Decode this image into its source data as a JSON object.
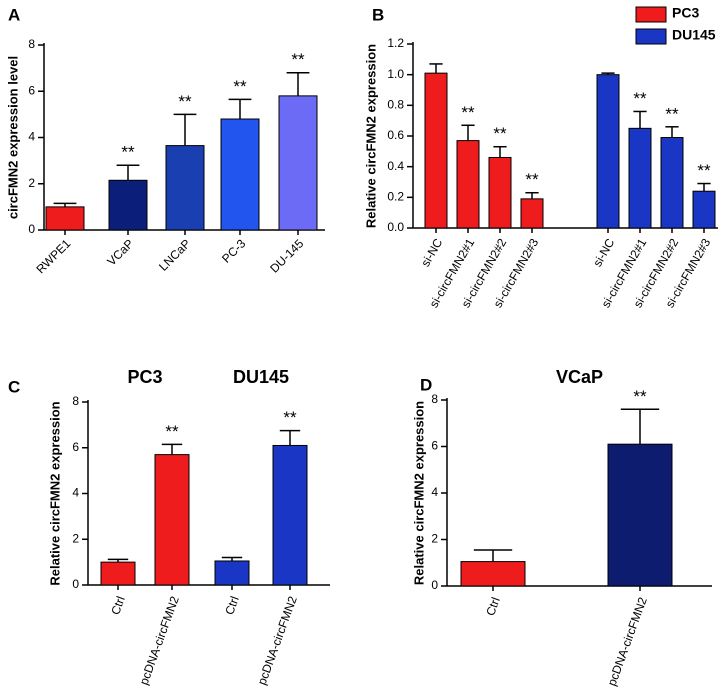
{
  "chart_data": [
    {
      "type": "bar",
      "panel": "A",
      "ylabel": "circFMN2 expression level",
      "categories": [
        "RWPE1",
        "VCaP",
        "LNCaP",
        "PC-3",
        "DU-145"
      ],
      "values": [
        1.0,
        2.15,
        3.65,
        4.8,
        5.8
      ],
      "errors": [
        0.15,
        0.65,
        1.35,
        0.85,
        1.0
      ],
      "colors": [
        "#ee1c1c",
        "#0b1e7a",
        "#1a3fb0",
        "#2255ee",
        "#6b6bf5"
      ],
      "annotations": [
        null,
        "**",
        "**",
        "**",
        "**"
      ],
      "ylim": [
        0,
        8
      ],
      "yticks": [
        0,
        2,
        4,
        6,
        8
      ]
    },
    {
      "type": "bar",
      "panel": "B",
      "ylabel": "Relative circFMN2 expression",
      "categories": [
        "si-NC",
        "si-circFMN2#1",
        "si-circFMN2#2",
        "si-circFMN2#3"
      ],
      "series": [
        {
          "name": "PC3",
          "color": "#ee1c1c",
          "values": [
            1.01,
            0.57,
            0.46,
            0.19
          ],
          "errors": [
            0.06,
            0.1,
            0.07,
            0.04
          ],
          "annotations": [
            null,
            "**",
            "**",
            "**"
          ]
        },
        {
          "name": "DU145",
          "color": "#1a36c4",
          "values": [
            1.0,
            0.65,
            0.59,
            0.24
          ],
          "errors": [
            0.01,
            0.11,
            0.07,
            0.05
          ],
          "annotations": [
            null,
            "**",
            "**",
            "**"
          ]
        }
      ],
      "legend": "upper right",
      "ylim": [
        0,
        1.2
      ],
      "yticks": [
        {
          "value": 0,
          "label": "0.0"
        },
        0.2,
        0.4,
        0.6,
        0.8,
        {
          "value": 1,
          "label": "1.0"
        },
        1.2
      ]
    },
    {
      "type": "bar",
      "panel": "C",
      "ylabel": "Relative circFMN2 expression",
      "categories": [
        "Ctrl",
        "pcDNA-circFMN2"
      ],
      "series": [
        {
          "name": "PC3",
          "color": "#ee1c1c",
          "values": [
            1.0,
            5.7
          ],
          "errors": [
            0.12,
            0.45
          ],
          "annotations": [
            null,
            "**"
          ]
        },
        {
          "name": "DU145",
          "color": "#1a36c4",
          "values": [
            1.05,
            6.1
          ],
          "errors": [
            0.15,
            0.65
          ],
          "annotations": [
            null,
            "**"
          ]
        }
      ],
      "ylim": [
        0,
        8
      ],
      "yticks": [
        0,
        2,
        4,
        6,
        8
      ]
    },
    {
      "type": "bar",
      "panel": "D",
      "title": "VCaP",
      "ylabel": "Relative circFMN2 expression",
      "categories": [
        "Ctrl",
        "pcDNA-circFMN2"
      ],
      "values": [
        1.05,
        6.1
      ],
      "errors": [
        0.5,
        1.5
      ],
      "colors": [
        "#ee1c1c",
        "#0d1c6e"
      ],
      "annotations": [
        null,
        "**"
      ],
      "ylim": [
        0,
        8
      ],
      "yticks": [
        0,
        2,
        4,
        6,
        8
      ]
    }
  ]
}
